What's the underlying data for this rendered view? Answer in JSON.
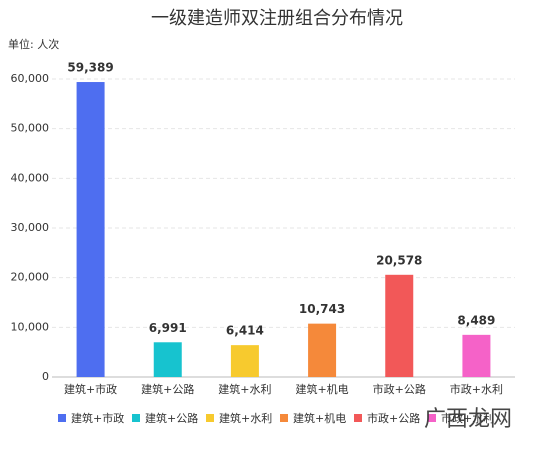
{
  "chart_data": {
    "type": "bar",
    "title": "一级建造师双注册组合分布情况",
    "unit_label": "单位: 人次",
    "categories": [
      "建筑+市政",
      "建筑+公路",
      "建筑+水利",
      "建筑+机电",
      "市政+公路",
      "市政+水利"
    ],
    "values": [
      59389,
      6991,
      6414,
      10743,
      20578,
      8489
    ],
    "value_labels": [
      "59,389",
      "6,991",
      "6,414",
      "10,743",
      "20,578",
      "8,489"
    ],
    "colors": [
      "#4e6ef0",
      "#17c3cf",
      "#f7ca2e",
      "#f5893a",
      "#f25858",
      "#f562c8"
    ],
    "ylim": [
      0,
      60000
    ],
    "yticks": [
      0,
      {
        "value": 10000,
        "label": "10,000"
      },
      {
        "value": 20000,
        "label": "20,000"
      },
      {
        "value": 30000,
        "label": "30,000"
      },
      {
        "value": 40000,
        "label": "40,000"
      },
      {
        "value": 50000,
        "label": "50,000"
      },
      {
        "value": 60000,
        "label": "60,000"
      }
    ],
    "grid": true,
    "legend": "bottom",
    "watermark": "广西龙网"
  }
}
